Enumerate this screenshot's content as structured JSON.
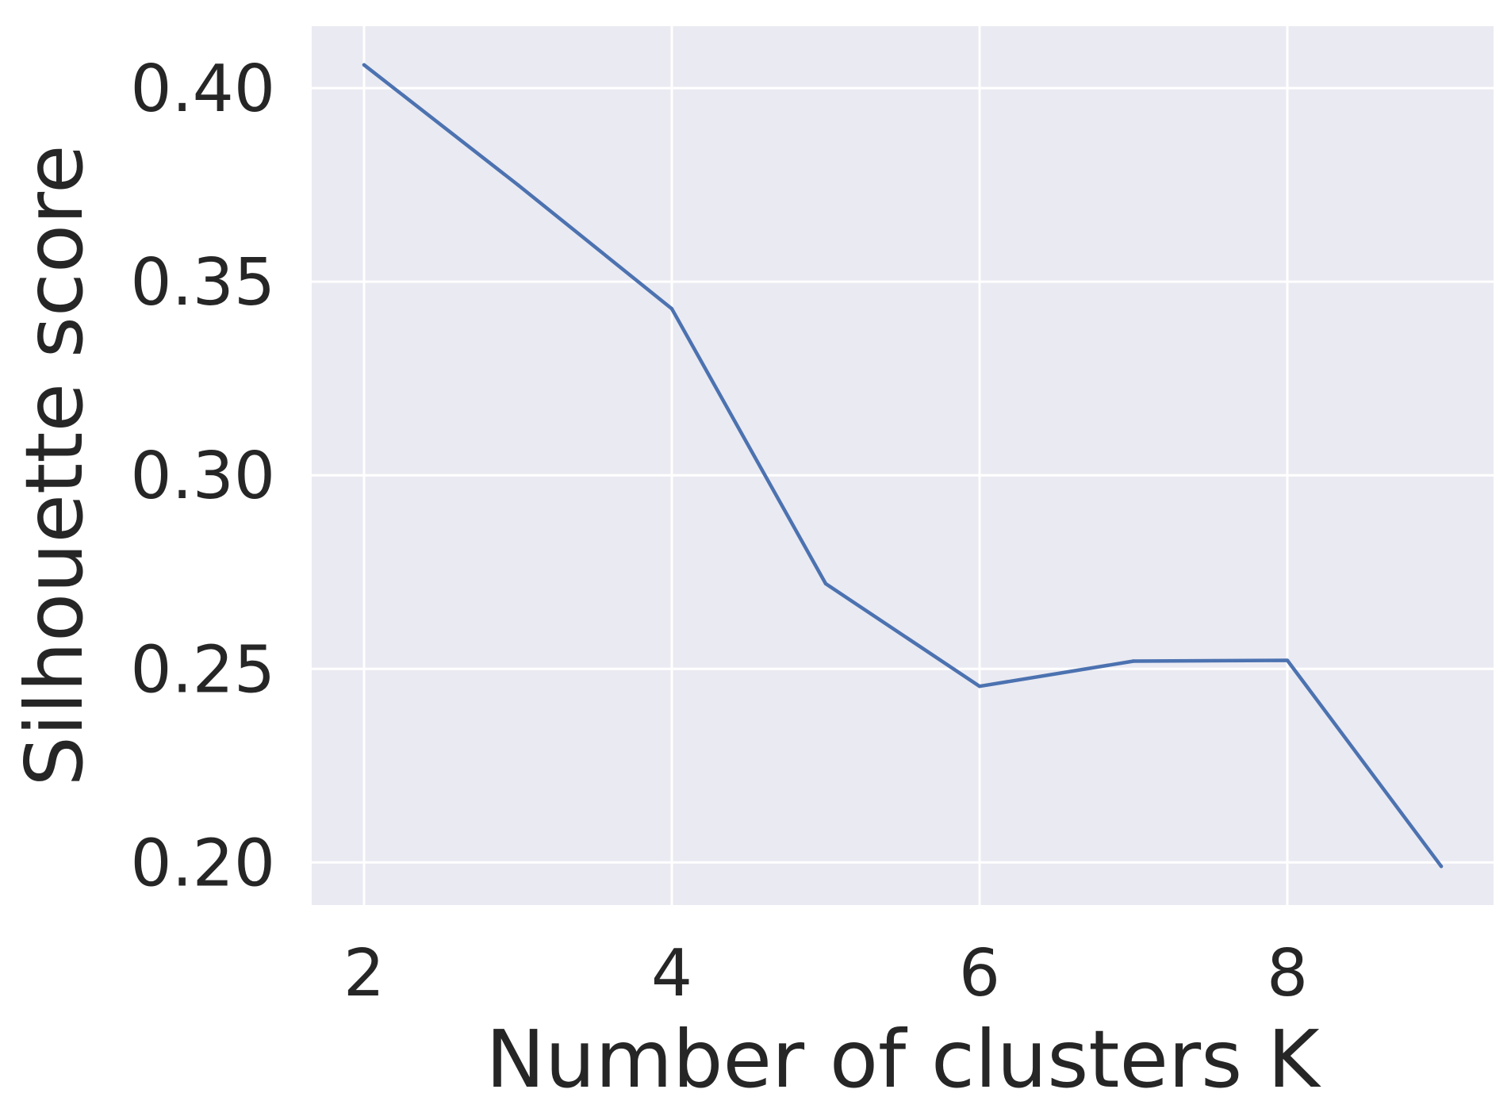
{
  "chart_data": {
    "type": "line",
    "title": "",
    "xlabel": "Number of clusters K",
    "ylabel": "Silhouette score",
    "x": [
      2,
      3,
      4,
      5,
      6,
      7,
      8,
      9
    ],
    "series": [
      {
        "values": [
          0.406,
          0.375,
          0.343,
          0.272,
          0.2455,
          0.252,
          0.2522,
          0.199
        ]
      }
    ],
    "xlim": [
      1.66,
      9.34
    ],
    "ylim": [
      0.189,
      0.416
    ],
    "xticks": [
      2,
      4,
      6,
      8
    ],
    "xtick_labels": [
      "2",
      "4",
      "6",
      "8"
    ],
    "yticks": [
      0.2,
      0.25,
      0.3,
      0.35,
      0.4
    ],
    "ytick_labels": [
      "0.20",
      "0.25",
      "0.30",
      "0.35",
      "0.40"
    ],
    "grid": true,
    "style": "seaborn-darkgrid",
    "colors": {
      "plot_background": "#EAEAF2",
      "grid": "#FFFFFF",
      "line": "#4C72B0",
      "text": "#262626"
    }
  }
}
